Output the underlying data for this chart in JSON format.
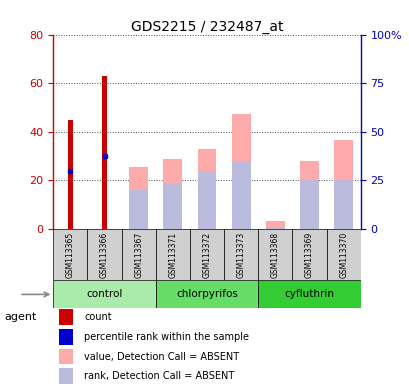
{
  "title": "GDS2215 / 232487_at",
  "samples": [
    "GSM113365",
    "GSM113366",
    "GSM113367",
    "GSM113371",
    "GSM113372",
    "GSM113373",
    "GSM113368",
    "GSM113369",
    "GSM113370"
  ],
  "groups": [
    {
      "name": "control",
      "indices": [
        0,
        1,
        2
      ],
      "color_light": "#ccf5cc",
      "color_dark": "#88ee88"
    },
    {
      "name": "chlorpyrifos",
      "indices": [
        3,
        4,
        5
      ],
      "color_light": "#88ee88",
      "color_dark": "#44cc44"
    },
    {
      "name": "cyfluthrin",
      "indices": [
        6,
        7,
        8
      ],
      "color_light": "#44dd44",
      "color_dark": "#22bb22"
    }
  ],
  "count_values": [
    45,
    63,
    null,
    null,
    null,
    null,
    null,
    null,
    null
  ],
  "percentile_values": [
    24,
    30,
    null,
    null,
    null,
    null,
    null,
    null,
    null
  ],
  "absent_value_values": [
    null,
    null,
    32,
    36,
    41,
    59,
    4,
    35,
    46
  ],
  "absent_rank_values": [
    null,
    null,
    20,
    23,
    30,
    35,
    1,
    25,
    25
  ],
  "ylim_left": [
    0,
    80
  ],
  "ylim_right": [
    0,
    100
  ],
  "left_ticks": [
    0,
    20,
    40,
    60,
    80
  ],
  "right_ticks": [
    0,
    25,
    50,
    75,
    100
  ],
  "right_tick_labels": [
    "0",
    "25",
    "50",
    "75",
    "100%"
  ],
  "count_color": "#cc0000",
  "percentile_color": "#0000cc",
  "absent_value_color": "#ffaaaa",
  "absent_rank_color": "#bbbbdd",
  "grid_color": "#555555",
  "agent_label": "agent",
  "legend_items": [
    {
      "color": "#cc0000",
      "label": "count"
    },
    {
      "color": "#0000cc",
      "label": "percentile rank within the sample"
    },
    {
      "color": "#ffaaaa",
      "label": "value, Detection Call = ABSENT"
    },
    {
      "color": "#bbbbdd",
      "label": "rank, Detection Call = ABSENT"
    }
  ]
}
